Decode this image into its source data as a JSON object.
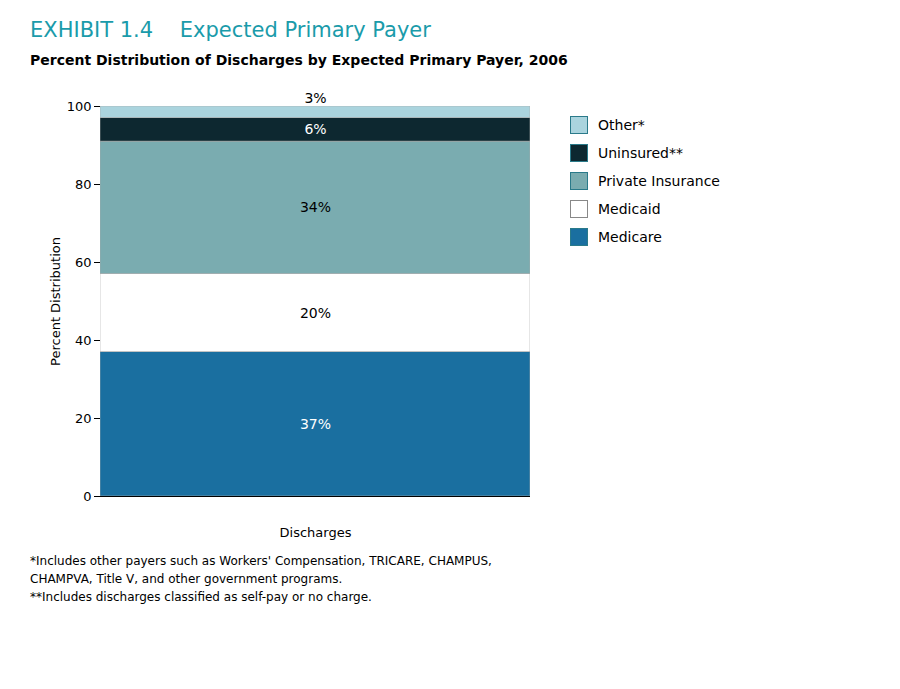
{
  "chart_data": {
    "type": "bar",
    "title": "EXHIBIT 1.4    Expected Primary Payer",
    "subtitle": "Percent Distribution of Discharges by Expected Primary Payer, 2006",
    "x_label": "Discharges",
    "y_label": "Percent Distribution",
    "categories": [
      null
    ],
    "series": [
      {
        "name": "Medicare",
        "color": "#1a6fa0",
        "values": [
          37
        ],
        "value_labels": [
          "37%"
        ]
      },
      {
        "name": "Medicaid",
        "color": "#ffffff",
        "values": [
          20
        ],
        "value_labels": [
          "20%"
        ]
      },
      {
        "name": "Private Insurance",
        "color": "#7aacb0",
        "values": [
          34
        ],
        "value_labels": [
          "34%"
        ]
      },
      {
        "name": "Uninsured**",
        "color": "#0d2830",
        "values": [
          6
        ],
        "value_labels": [
          "6%"
        ]
      },
      {
        "name": "Other*",
        "color": "#aad4de",
        "values": [
          3
        ],
        "value_labels": [
          "3%"
        ]
      }
    ],
    "stacked": true,
    "data_labels": true,
    "legend": "right",
    "ylim": [
      0,
      100
    ],
    "yticks": [
      0,
      20,
      40,
      60,
      80,
      100
    ],
    "footnotes": [
      "*Includes other payers such as Workers' Compensation, TRICARE, CHAMPUS,",
      "CHAMPVA, Title V, and other government programs.",
      "**Includes discharges classified as self-pay or no charge."
    ]
  }
}
